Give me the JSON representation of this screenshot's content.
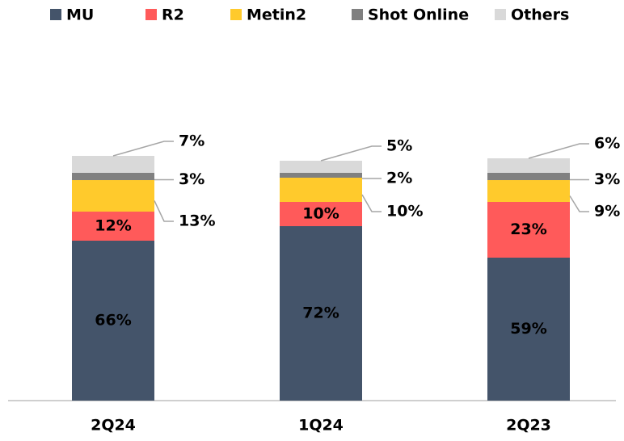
{
  "chart_data": {
    "type": "stacked_bar",
    "categories": [
      "2Q24",
      "1Q24",
      "2Q23"
    ],
    "series": [
      {
        "name": "MU",
        "color": "#44546a",
        "values": [
          66,
          72,
          59
        ],
        "value_labels": [
          "66%",
          "72%",
          "59%"
        ]
      },
      {
        "name": "R2",
        "color": "#ff5a5a",
        "values": [
          12,
          10,
          23
        ],
        "value_labels": [
          "12%",
          "10%",
          "23%"
        ]
      },
      {
        "name": "Metin2",
        "color": "#ffca2c",
        "values": [
          13,
          10,
          9
        ],
        "value_labels": [
          "13%",
          "10%",
          "9%"
        ]
      },
      {
        "name": "Shot Online",
        "color": "#808080",
        "values": [
          3,
          2,
          3
        ],
        "value_labels": [
          "3%",
          "2%",
          "3%"
        ]
      },
      {
        "name": "Others",
        "color": "#d9d9d9",
        "values": [
          7,
          5,
          6
        ],
        "value_labels": [
          "7%",
          "5%",
          "6%"
        ]
      }
    ]
  }
}
